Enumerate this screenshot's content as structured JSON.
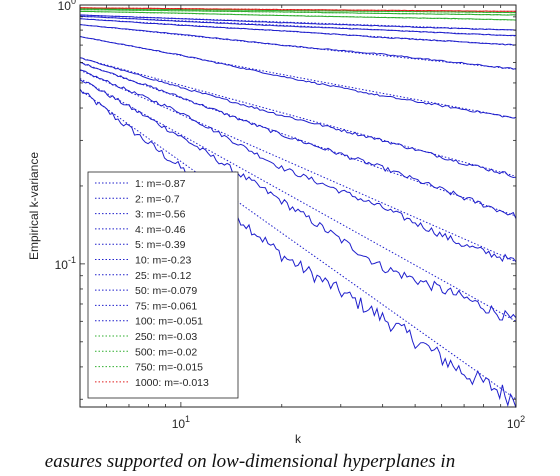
{
  "caption": "easures supported on low-dimensional hyperplanes in",
  "chart_data": {
    "type": "line",
    "xlabel": "k",
    "ylabel": "Empirical k-variance",
    "xscale": "log",
    "yscale": "log",
    "xlim": [
      5,
      100
    ],
    "ylim": [
      0.028,
      1.0
    ],
    "xticks": [
      {
        "value": 10,
        "base": "10",
        "exp": "1"
      },
      {
        "value": 100,
        "base": "10",
        "exp": "2"
      }
    ],
    "yticks": [
      {
        "value": 0.1,
        "base": "10",
        "exp": "-1"
      },
      {
        "value": 1,
        "base": "10",
        "exp": "0"
      }
    ],
    "grid": false,
    "legend_position": "lower-left",
    "colors": {
      "blue": "#1f1fcc",
      "green": "#2eae2e",
      "red": "#e01c1c"
    },
    "series": [
      {
        "name": "1: m=-0.87",
        "color": "#1f1fcc",
        "noise": 0.05,
        "points": [
          [
            5,
            0.47
          ],
          [
            7,
            0.335
          ],
          [
            10,
            0.235
          ],
          [
            20,
            0.108
          ],
          [
            40,
            0.062
          ],
          [
            70,
            0.038
          ],
          [
            100,
            0.03
          ]
        ]
      },
      {
        "name": "2: m=-0.7",
        "color": "#1f1fcc",
        "noise": 0.03,
        "points": [
          [
            5,
            0.52
          ],
          [
            10,
            0.31
          ],
          [
            20,
            0.175
          ],
          [
            40,
            0.097
          ],
          [
            70,
            0.074
          ],
          [
            100,
            0.06
          ]
        ]
      },
      {
        "name": "3: m=-0.56",
        "color": "#1f1fcc",
        "noise": 0.02,
        "points": [
          [
            5,
            0.56
          ],
          [
            10,
            0.385
          ],
          [
            20,
            0.235
          ],
          [
            40,
            0.165
          ],
          [
            70,
            0.118
          ],
          [
            100,
            0.102
          ]
        ]
      },
      {
        "name": "4: m=-0.46",
        "color": "#1f1fcc",
        "noise": 0.015,
        "points": [
          [
            5,
            0.6
          ],
          [
            10,
            0.44
          ],
          [
            20,
            0.315
          ],
          [
            40,
            0.235
          ],
          [
            70,
            0.18
          ],
          [
            100,
            0.153
          ]
        ]
      },
      {
        "name": "5: m=-0.39",
        "color": "#1f1fcc",
        "noise": 0.01,
        "points": [
          [
            5,
            0.625
          ],
          [
            10,
            0.48
          ],
          [
            20,
            0.375
          ],
          [
            40,
            0.3
          ],
          [
            70,
            0.245
          ],
          [
            100,
            0.218
          ]
        ]
      },
      {
        "name": "10: m=-0.23",
        "color": "#1f1fcc",
        "noise": 0.006,
        "points": [
          [
            5,
            0.755
          ],
          [
            10,
            0.64
          ],
          [
            20,
            0.53
          ],
          [
            40,
            0.445
          ],
          [
            70,
            0.395
          ],
          [
            100,
            0.365
          ]
        ]
      },
      {
        "name": "25: m=-0.12",
        "color": "#1f1fcc",
        "noise": 0.004,
        "points": [
          [
            5,
            0.84
          ],
          [
            10,
            0.77
          ],
          [
            20,
            0.7
          ],
          [
            40,
            0.645
          ],
          [
            70,
            0.595
          ],
          [
            100,
            0.565
          ]
        ]
      },
      {
        "name": "50: m=-0.079",
        "color": "#1f1fcc",
        "noise": 0.003,
        "points": [
          [
            5,
            0.885
          ],
          [
            10,
            0.835
          ],
          [
            20,
            0.795
          ],
          [
            40,
            0.75
          ],
          [
            70,
            0.72
          ],
          [
            100,
            0.7
          ]
        ]
      },
      {
        "name": "75: m=-0.061",
        "color": "#1f1fcc",
        "noise": 0.002,
        "points": [
          [
            5,
            0.905
          ],
          [
            10,
            0.865
          ],
          [
            20,
            0.83
          ],
          [
            40,
            0.8
          ],
          [
            70,
            0.775
          ],
          [
            100,
            0.76
          ]
        ]
      },
      {
        "name": "100: m=-0.051",
        "color": "#1f1fcc",
        "noise": 0.002,
        "points": [
          [
            5,
            0.915
          ],
          [
            10,
            0.885
          ],
          [
            20,
            0.855
          ],
          [
            40,
            0.83
          ],
          [
            70,
            0.81
          ],
          [
            100,
            0.8
          ]
        ]
      },
      {
        "name": "250: m=-0.03",
        "color": "#2eae2e",
        "noise": 0.001,
        "points": [
          [
            5,
            0.945
          ],
          [
            10,
            0.93
          ],
          [
            20,
            0.91
          ],
          [
            40,
            0.895
          ],
          [
            70,
            0.885
          ],
          [
            100,
            0.875
          ]
        ]
      },
      {
        "name": "500: m=-0.02",
        "color": "#2eae2e",
        "noise": 0.001,
        "points": [
          [
            5,
            0.96
          ],
          [
            10,
            0.95
          ],
          [
            20,
            0.94
          ],
          [
            40,
            0.928
          ],
          [
            70,
            0.92
          ],
          [
            100,
            0.915
          ]
        ]
      },
      {
        "name": "750: m=-0.015",
        "color": "#2eae2e",
        "noise": 0.001,
        "points": [
          [
            5,
            0.968
          ],
          [
            10,
            0.96
          ],
          [
            20,
            0.952
          ],
          [
            40,
            0.945
          ],
          [
            70,
            0.94
          ],
          [
            100,
            0.935
          ]
        ]
      },
      {
        "name": "1000: m=-0.013",
        "color": "#e01c1c",
        "noise": 0.001,
        "points": [
          [
            5,
            0.975
          ],
          [
            10,
            0.968
          ],
          [
            20,
            0.96
          ],
          [
            40,
            0.954
          ],
          [
            70,
            0.949
          ],
          [
            100,
            0.945
          ]
        ]
      }
    ]
  }
}
